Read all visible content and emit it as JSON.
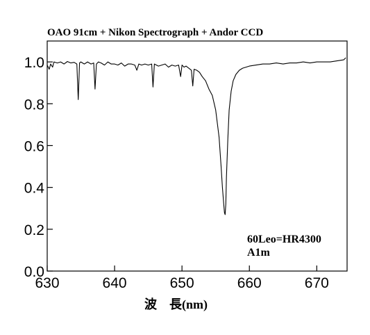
{
  "chart_data": {
    "type": "line",
    "title": "OAO 91cm + Nikon Spectrograph + Andor CCD",
    "xlabel": "波　長(nm)",
    "ylabel": "",
    "xlim": [
      630,
      674.5
    ],
    "ylim": [
      0.0,
      1.1
    ],
    "xticks": [
      "630",
      "640",
      "650",
      "660",
      "670"
    ],
    "yticks": [
      "0.0",
      "0.2",
      "0.4",
      "0.6",
      "0.8",
      "1.0"
    ],
    "grid": false,
    "legend": "none",
    "annotations": [
      "60Leo=HR4300",
      "A1m"
    ],
    "series": [
      {
        "x": [
          630.0,
          630.3,
          630.5,
          630.8,
          631.0,
          631.5,
          632.0,
          632.5,
          633.0,
          633.5,
          634.0,
          634.4,
          634.6,
          634.8,
          635.0,
          635.5,
          636.0,
          636.5,
          636.9,
          637.1,
          637.3,
          637.6,
          638.0,
          638.5,
          639.0,
          639.5,
          640.0,
          640.5,
          641.0,
          641.5,
          642.0,
          642.5,
          643.0,
          643.3,
          643.6,
          644.0,
          644.5,
          645.0,
          645.5,
          645.7,
          645.9,
          646.2,
          646.5,
          647.0,
          647.5,
          648.0,
          648.5,
          649.0,
          649.5,
          649.8,
          650.0,
          650.3,
          650.6,
          651.0,
          651.4,
          651.6,
          651.8,
          652.2,
          652.6,
          653.0,
          653.5,
          654.0,
          654.5,
          655.0,
          655.5,
          655.8,
          656.0,
          656.2,
          656.3,
          656.4,
          656.5,
          656.6,
          656.8,
          657.0,
          657.3,
          657.6,
          658.0,
          658.5,
          659.0,
          659.5,
          660.0,
          661.0,
          662.0,
          663.0,
          664.0,
          665.0,
          666.0,
          667.0,
          668.0,
          669.0,
          670.0,
          671.0,
          672.0,
          673.0,
          674.0,
          674.3
        ],
        "values": [
          0.985,
          0.965,
          0.99,
          0.975,
          1.0,
          0.995,
          1.0,
          0.99,
          1.002,
          0.995,
          0.998,
          0.99,
          0.82,
          0.995,
          1.0,
          0.99,
          1.0,
          0.99,
          0.995,
          0.87,
          0.99,
          1.0,
          0.995,
          0.985,
          1.0,
          0.99,
          0.99,
          0.985,
          0.995,
          0.98,
          0.99,
          0.99,
          0.985,
          0.96,
          0.99,
          0.985,
          0.99,
          0.985,
          0.99,
          0.88,
          0.99,
          0.985,
          0.98,
          0.985,
          0.99,
          0.975,
          0.985,
          0.98,
          0.985,
          0.93,
          0.985,
          0.975,
          0.98,
          0.97,
          0.96,
          0.885,
          0.965,
          0.96,
          0.95,
          0.93,
          0.91,
          0.87,
          0.84,
          0.77,
          0.64,
          0.5,
          0.4,
          0.32,
          0.28,
          0.27,
          0.32,
          0.45,
          0.63,
          0.77,
          0.86,
          0.91,
          0.94,
          0.96,
          0.97,
          0.975,
          0.98,
          0.985,
          0.99,
          0.99,
          0.995,
          0.99,
          0.995,
          0.995,
          1.0,
          0.995,
          1.0,
          1.0,
          1.0,
          1.005,
          1.01,
          1.02
        ]
      }
    ]
  }
}
